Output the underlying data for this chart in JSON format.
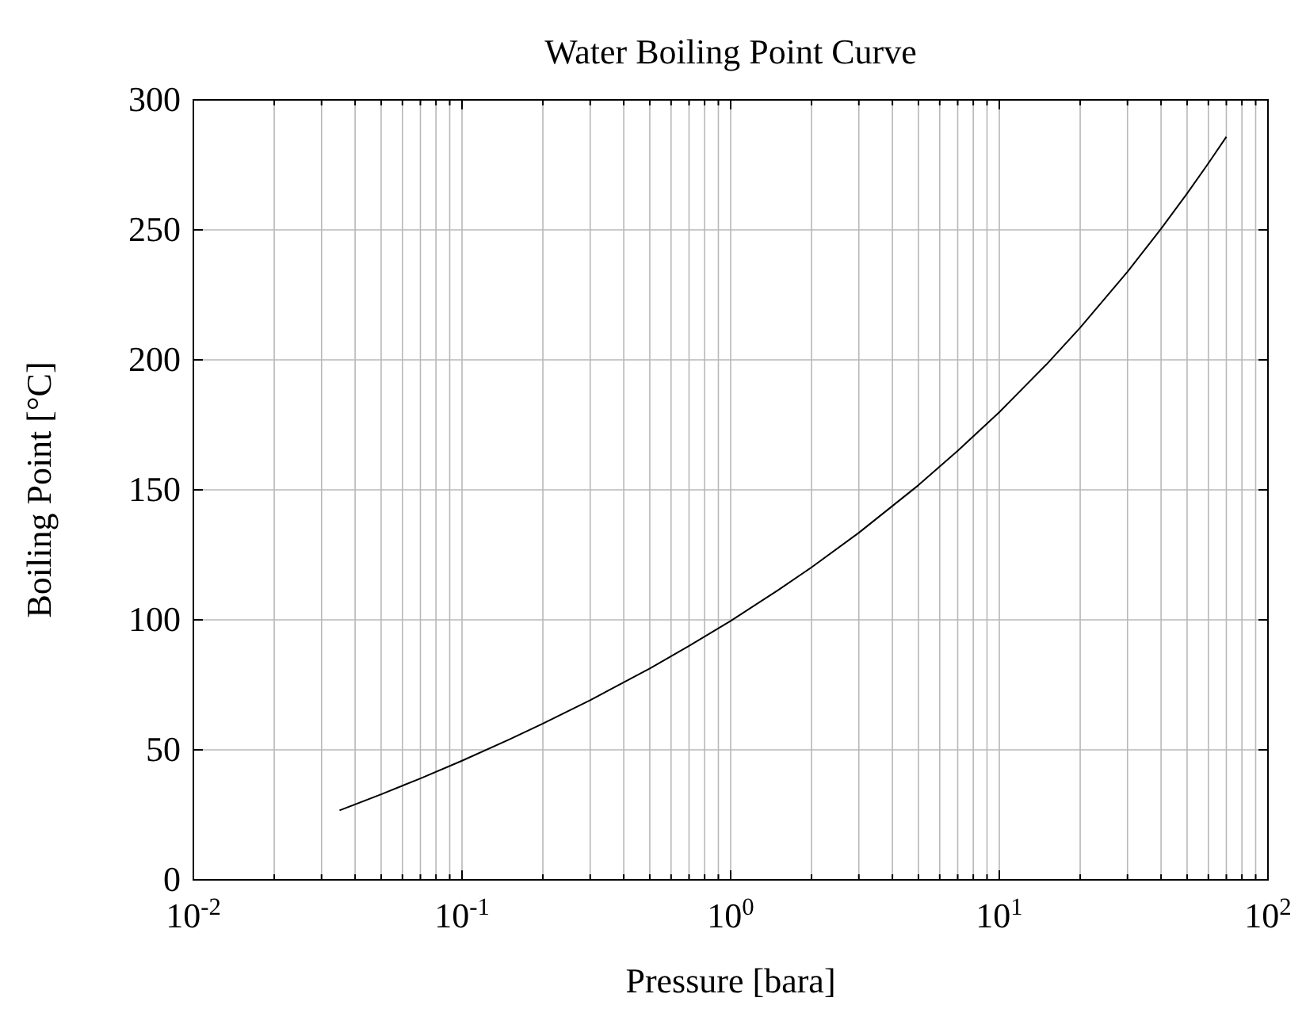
{
  "chart_data": {
    "type": "line",
    "title": "Water Boiling Point Curve",
    "xlabel": "Pressure [bara]",
    "ylabel": "Boiling Point [°C]",
    "log": "x",
    "grid": true,
    "marker": "none",
    "line_style": "solid",
    "xlim": [
      0.01,
      100
    ],
    "ylim": [
      0,
      300
    ],
    "xticks": [
      {
        "value": 0.01,
        "label": "10$^{-2}$"
      },
      {
        "value": 0.02,
        "label": null
      },
      {
        "value": 0.03,
        "label": null
      },
      {
        "value": 0.04,
        "label": null
      },
      {
        "value": 0.05,
        "label": null
      },
      {
        "value": 0.06,
        "label": null
      },
      {
        "value": 0.07,
        "label": null
      },
      {
        "value": 0.08,
        "label": null
      },
      {
        "value": 0.09,
        "label": null
      },
      {
        "value": 0.1,
        "label": "10$^{-1}$"
      },
      {
        "value": 0.2,
        "label": null
      },
      {
        "value": 0.3,
        "label": null
      },
      {
        "value": 0.4,
        "label": null
      },
      {
        "value": 0.5,
        "label": null
      },
      {
        "value": 0.6,
        "label": null
      },
      {
        "value": 0.7,
        "label": null
      },
      {
        "value": 0.8,
        "label": null
      },
      {
        "value": 0.9,
        "label": null
      },
      {
        "value": 1,
        "label": "10$^{0}$"
      },
      {
        "value": 2,
        "label": null
      },
      {
        "value": 3,
        "label": null
      },
      {
        "value": 4,
        "label": null
      },
      {
        "value": 5,
        "label": null
      },
      {
        "value": 6,
        "label": null
      },
      {
        "value": 7,
        "label": null
      },
      {
        "value": 8,
        "label": null
      },
      {
        "value": 9,
        "label": null
      },
      {
        "value": 10,
        "label": "10$^{1}$"
      },
      {
        "value": 20,
        "label": null
      },
      {
        "value": 30,
        "label": null
      },
      {
        "value": 40,
        "label": null
      },
      {
        "value": 50,
        "label": null
      },
      {
        "value": 60,
        "label": null
      },
      {
        "value": 70,
        "label": null
      },
      {
        "value": 80,
        "label": null
      },
      {
        "value": 90,
        "label": null
      },
      {
        "value": 100,
        "label": "10$^{2}$"
      }
    ],
    "yticks": [
      0,
      50,
      100,
      150,
      200,
      250,
      300
    ],
    "series": [
      {
        "color": "#000000",
        "x": [
          0.035,
          0.05,
          0.07,
          0.1,
          0.15,
          0.2,
          0.3,
          0.5,
          0.7,
          1,
          1.5,
          2,
          3,
          5,
          7,
          10,
          15,
          20,
          30,
          40,
          50,
          60,
          70
        ],
        "values": [
          26.7,
          32.9,
          39.0,
          45.8,
          54.0,
          60.1,
          69.1,
          81.3,
          90.0,
          99.6,
          111.4,
          120.2,
          133.5,
          151.8,
          165.0,
          179.9,
          198.3,
          212.4,
          233.9,
          250.4,
          264.0,
          275.6,
          285.8
        ]
      }
    ]
  }
}
